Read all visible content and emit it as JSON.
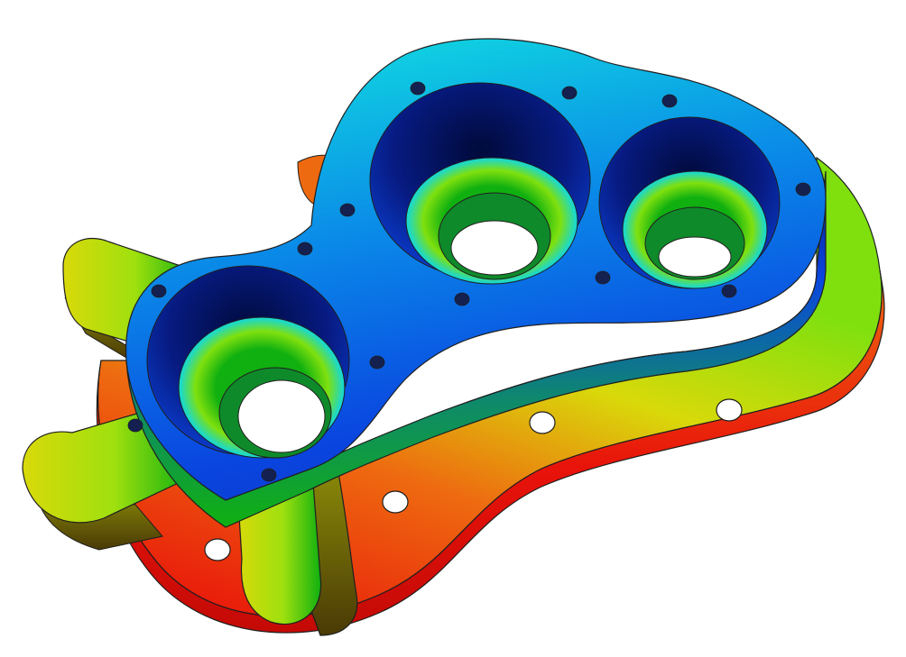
{
  "image": {
    "subject": "fea-stress-contour-plot",
    "colors": {
      "background": "#ffffff",
      "edge_dark": "#1f1f1f",
      "hole_fill": "#222222",
      "bore_shadow": "#000a3a",
      "red": "#e8130a",
      "orange": "#ee6a10",
      "yellow": "#d9d90a",
      "lime": "#7fe00e",
      "green": "#10b010",
      "cyan": "#10d8e0",
      "blue": "#0a45e0",
      "navy": "#071a80"
    }
  }
}
